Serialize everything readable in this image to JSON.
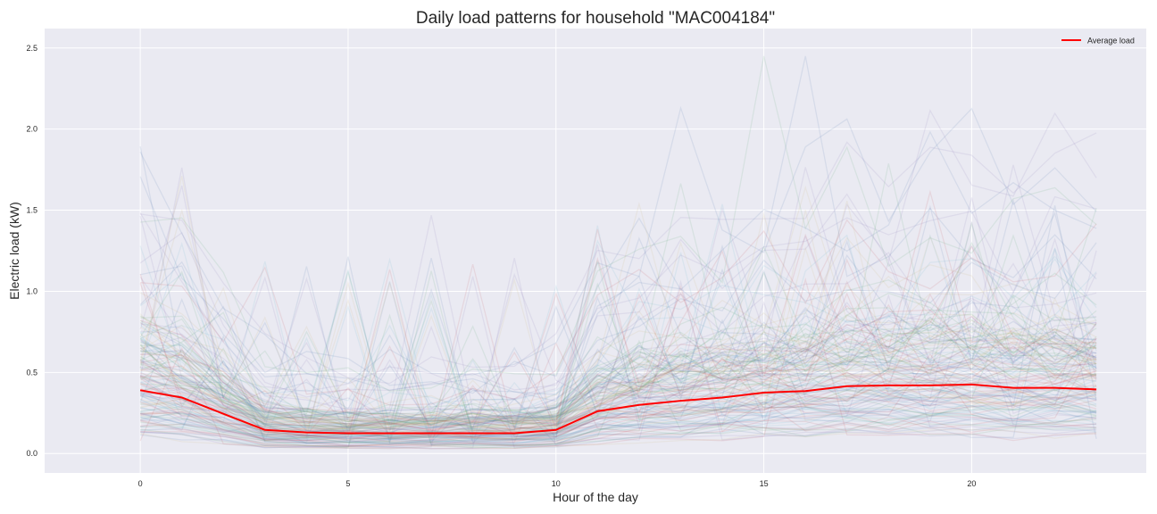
{
  "chart_data": {
    "type": "line",
    "title": "Daily load patterns for household \"MAC004184\"",
    "xlabel": "Hour of the day",
    "ylabel": "Electric load (kW)",
    "xlim": [
      -2.3,
      24.2
    ],
    "ylim": [
      -0.12,
      2.62
    ],
    "xticks": [
      0,
      5,
      10,
      15,
      20
    ],
    "yticks": [
      0.0,
      0.5,
      1.0,
      1.5,
      2.0,
      2.5
    ],
    "grid": true,
    "background": "#eaeaf2",
    "legend": {
      "placement": "top-right",
      "entries": [
        "Average load"
      ]
    },
    "highlight_series": {
      "name": "Average load",
      "color": "#ff0000",
      "x": [
        0,
        1,
        2,
        3,
        4,
        5,
        6,
        7,
        8,
        9,
        10,
        11,
        12,
        13,
        14,
        15,
        16,
        17,
        18,
        19,
        20,
        21,
        22,
        23
      ],
      "values": [
        0.39,
        0.345,
        0.245,
        0.145,
        0.13,
        0.125,
        0.125,
        0.125,
        0.125,
        0.125,
        0.145,
        0.26,
        0.3,
        0.325,
        0.345,
        0.375,
        0.385,
        0.415,
        0.42,
        0.42,
        0.425,
        0.405,
        0.405,
        0.395
      ]
    },
    "background_series": {
      "description_visible": false,
      "count": 160,
      "colors": [
        "#4c72b0",
        "#55a868",
        "#c44e52",
        "#8172b2",
        "#ccb974",
        "#64b5cd"
      ],
      "opacity": 0.12
    }
  }
}
